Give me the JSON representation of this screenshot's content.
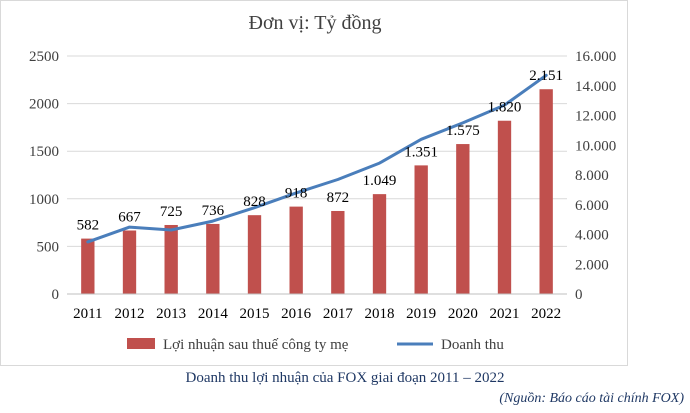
{
  "chart_data": {
    "type": "bar",
    "title": "Đơn vị: Tỷ đồng",
    "categories": [
      "2011",
      "2012",
      "2013",
      "2014",
      "2015",
      "2016",
      "2017",
      "2018",
      "2019",
      "2020",
      "2021",
      "2022"
    ],
    "series": [
      {
        "name": "Lợi nhuận sau thuế công ty mẹ",
        "type": "bar",
        "axis": "left",
        "color": "#c0504d",
        "values": [
          582,
          667,
          725,
          736,
          828,
          918,
          872,
          1049,
          1351,
          1575,
          1820,
          2151
        ],
        "labels": [
          "582",
          "667",
          "725",
          "736",
          "828",
          "918",
          "872",
          "1.049",
          "1.351",
          "1.575",
          "1.820",
          "2.151"
        ]
      },
      {
        "name": "Doanh thu",
        "type": "line",
        "axis": "right",
        "color": "#4a7ebb",
        "values": [
          3500,
          4500,
          4300,
          4900,
          5800,
          6800,
          7700,
          8800,
          10400,
          11500,
          12700,
          14700
        ]
      }
    ],
    "left_axis": {
      "min": 0,
      "max": 2500,
      "step": 500,
      "ticks": [
        "0",
        "500",
        "1000",
        "1500",
        "2000",
        "2500"
      ]
    },
    "right_axis": {
      "min": 0,
      "max": 16000,
      "step": 2000,
      "ticks": [
        "0",
        "2.000",
        "4.000",
        "6.000",
        "8.000",
        "10.000",
        "12.000",
        "14.000",
        "16.000"
      ]
    },
    "grid": true,
    "legend_position": "bottom"
  },
  "caption": "Doanh thu lợi nhuận của FOX giai đoạn 2011 – 2022",
  "source": "(Nguồn: Báo cáo tài chính FOX)"
}
